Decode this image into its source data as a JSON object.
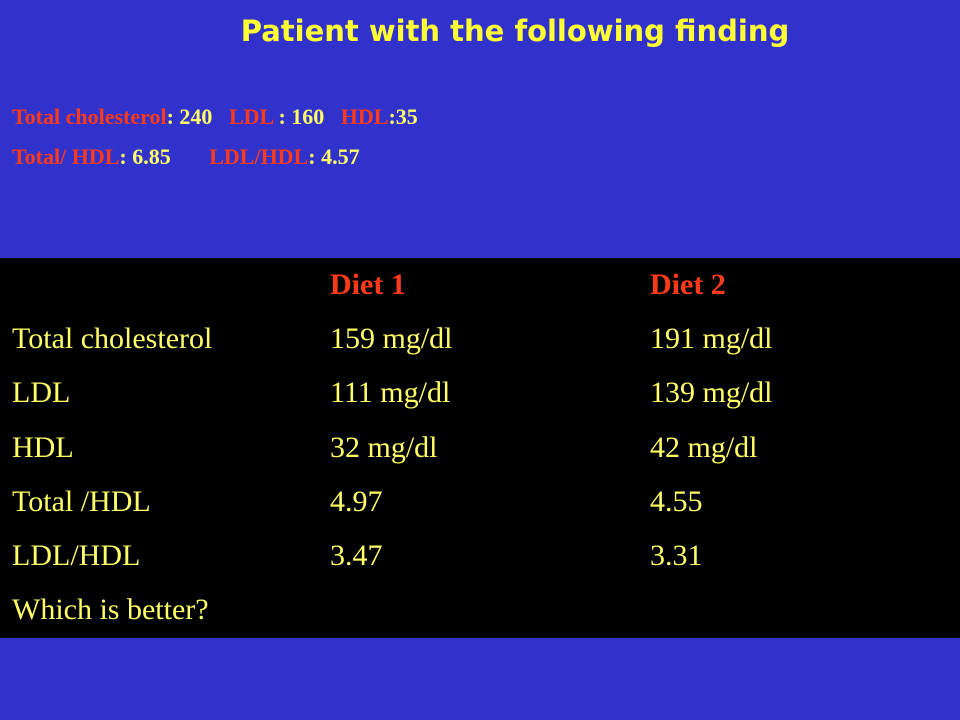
{
  "title": "Patient with the following finding",
  "findings": [
    [
      {
        "text": "Total cholesterol",
        "color": "#ff3a1a"
      },
      {
        "text": ": 240   ",
        "color": "#ffff66"
      },
      {
        "text": "LDL",
        "color": "#ff3a1a"
      },
      {
        "text": " : 160   ",
        "color": "#ffff66"
      },
      {
        "text": "HDL",
        "color": "#ff3a1a"
      },
      {
        "text": ":35",
        "color": "#ffff66"
      }
    ],
    [
      {
        "text": "Total/ HDL",
        "color": "#ff3a1a"
      },
      {
        "text": ": 6.85       ",
        "color": "#ffff66"
      },
      {
        "text": "LDL/HDL",
        "color": "#ff3a1a"
      },
      {
        "text": ": 4.57",
        "color": "#ffff66"
      }
    ]
  ],
  "table": {
    "columns": [
      "Diet 1",
      "Diet 2"
    ],
    "rows": [
      [
        "Total cholesterol",
        "159 mg/dl",
        "191 mg/dl"
      ],
      [
        "LDL",
        "111 mg/dl",
        "139 mg/dl"
      ],
      [
        "HDL",
        "32 mg/dl",
        "42 mg/dl"
      ],
      [
        "Total /HDL",
        "4.97",
        "4.55"
      ],
      [
        "LDL/HDL",
        "3.47",
        "3.31"
      ],
      [
        "Which is better?"
      ]
    ]
  }
}
